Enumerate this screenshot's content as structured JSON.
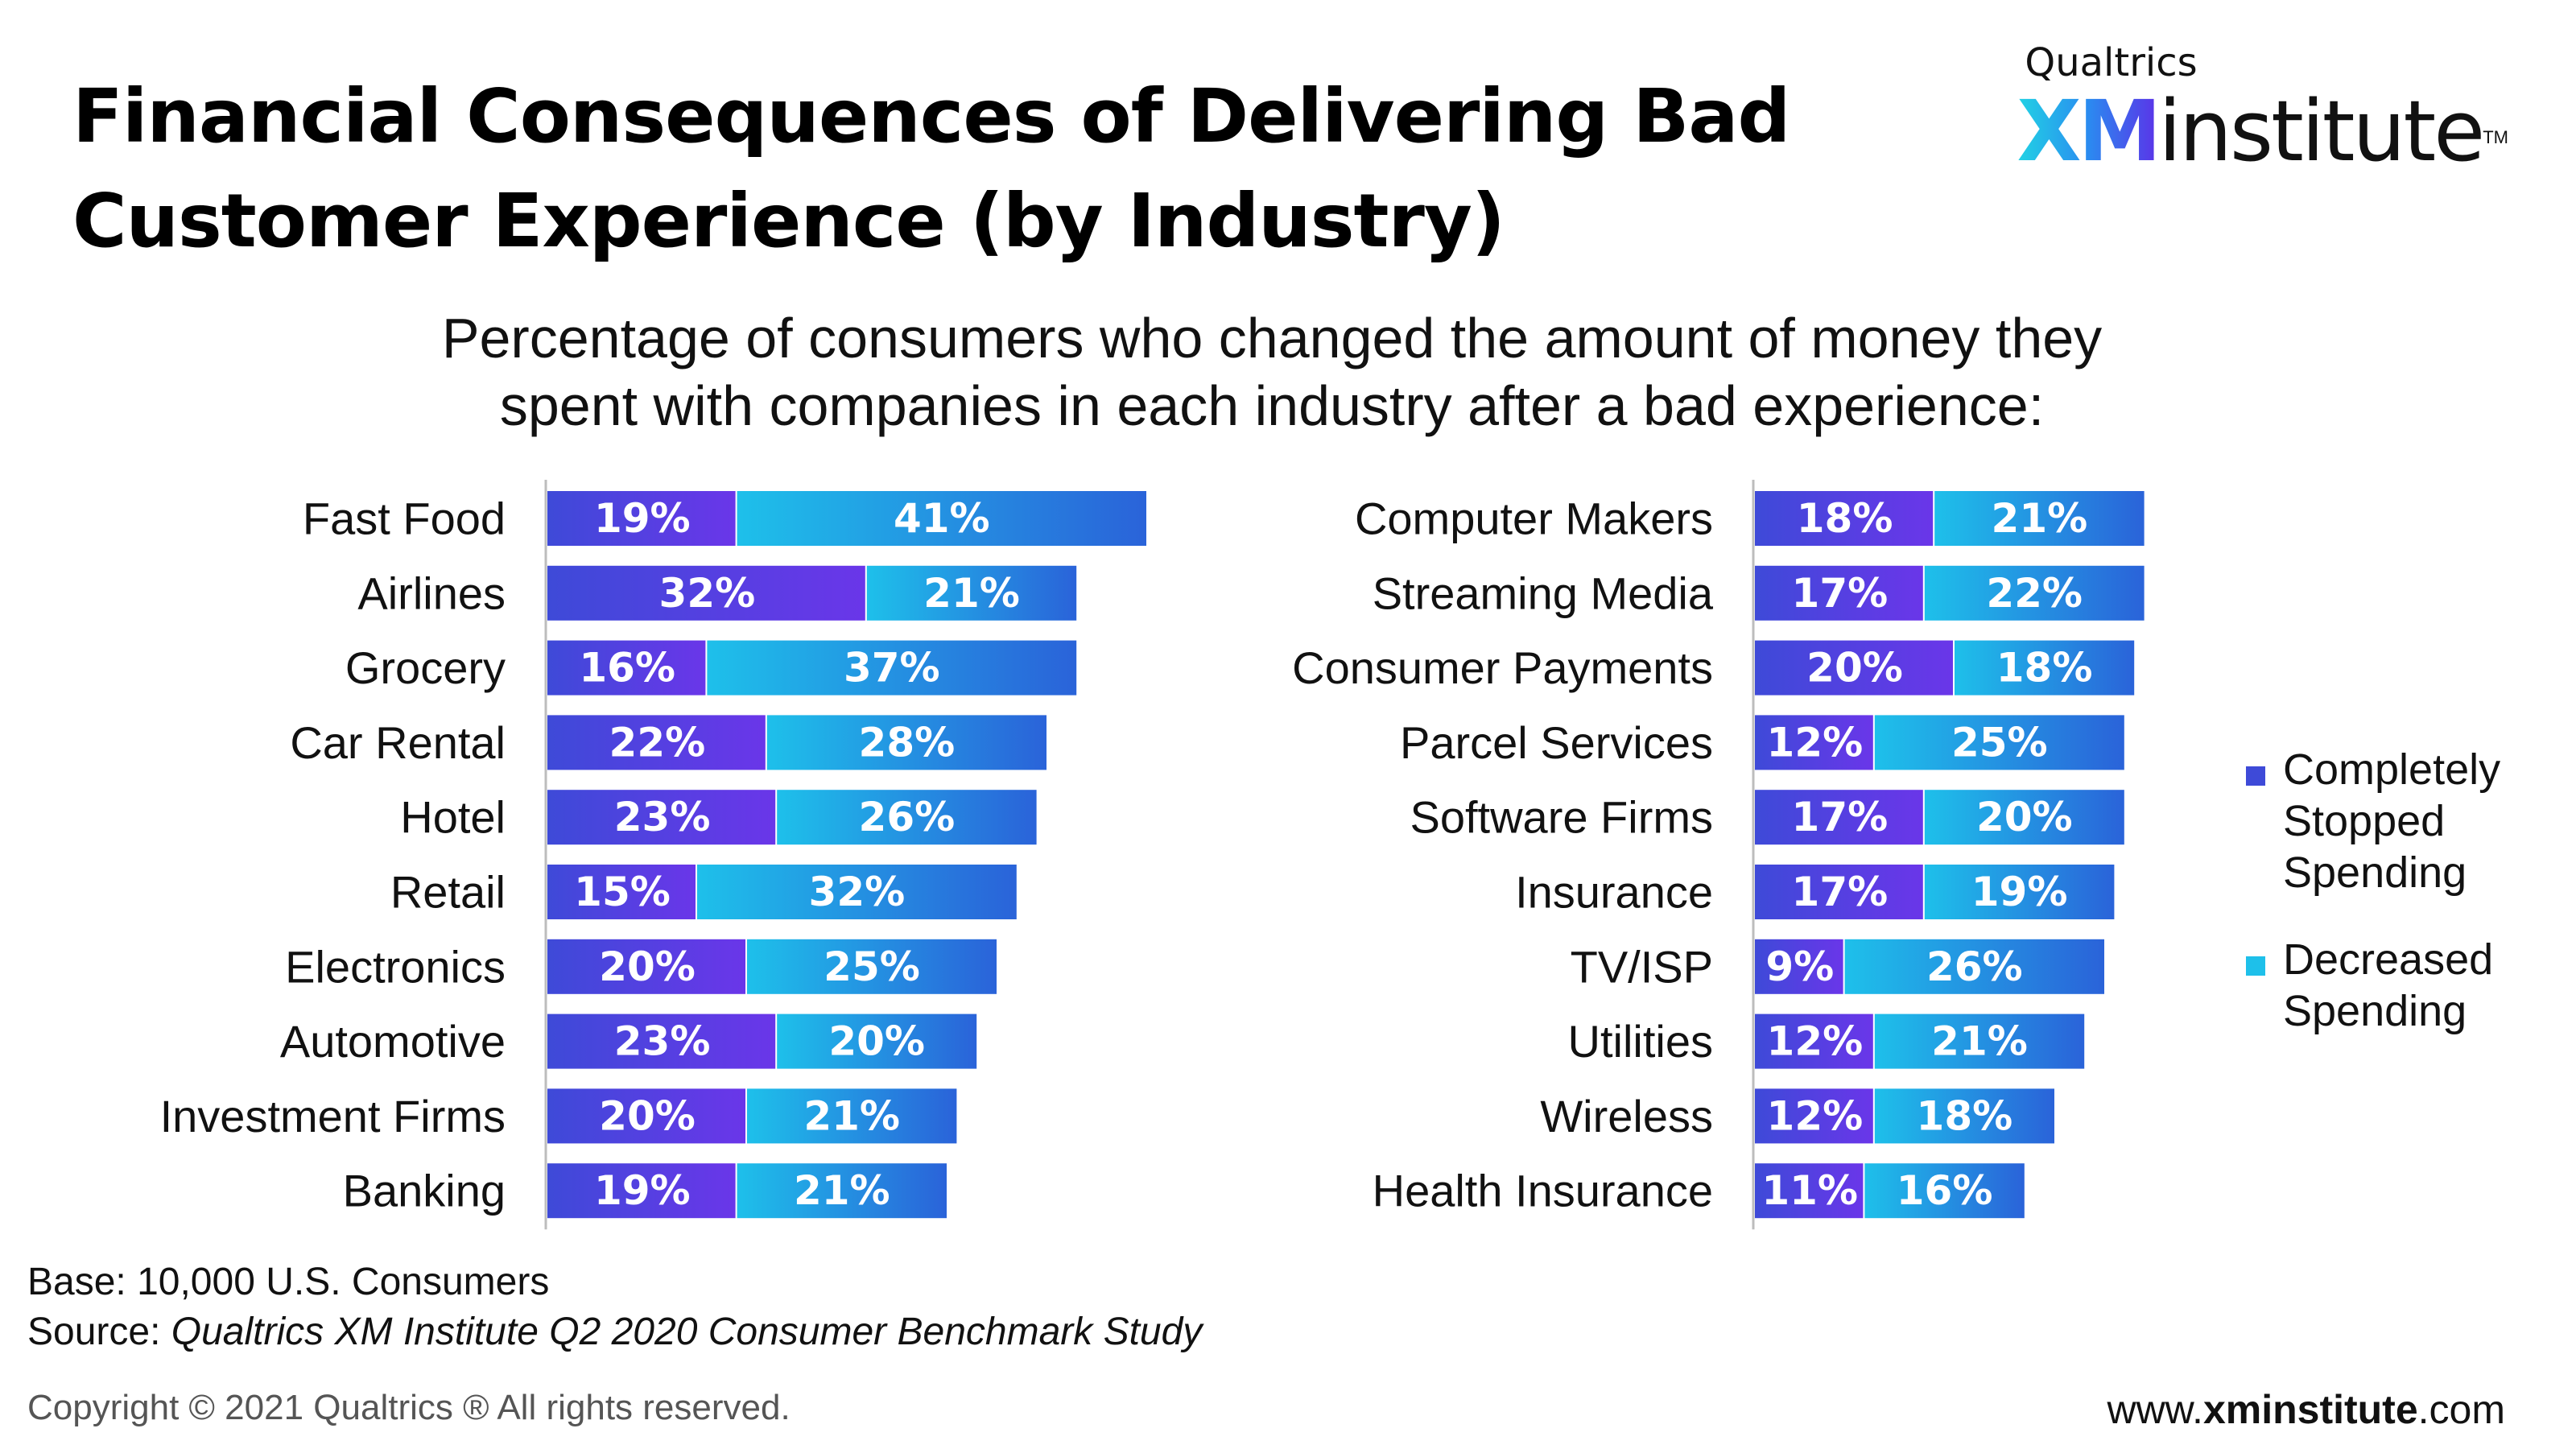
{
  "title": "Financial Consequences of Delivering Bad Customer Experience (by Industry)",
  "logo": {
    "brand": "Qualtrics",
    "xm": "XM",
    "institute": "institute",
    "tm": "TM"
  },
  "subtitle": {
    "line1": "Percentage of consumers who changed the amount of money they",
    "line2": "spent with companies in each industry after a bad experience:"
  },
  "colors": {
    "stopped": "#6a36e9",
    "stopped_dark": "#3e4ad8",
    "decreased": "#1ec0ea",
    "decreased_dark": "#2a63d9",
    "axis": "#bdbdbd"
  },
  "chart_data": [
    {
      "type": "bar",
      "orientation": "horizontal",
      "stacked": true,
      "categories": [
        "Fast Food",
        "Airlines",
        "Grocery",
        "Car Rental",
        "Hotel",
        "Retail",
        "Electronics",
        "Automotive",
        "Investment Firms",
        "Banking"
      ],
      "series": [
        {
          "name": "Completely Stopped Spending",
          "values": [
            19,
            32,
            16,
            22,
            23,
            15,
            20,
            23,
            20,
            19
          ],
          "labels": [
            "19%",
            "32%",
            "16%",
            "22%",
            "23%",
            "15%",
            "20%",
            "23%",
            "20%",
            "19%"
          ]
        },
        {
          "name": "Decreased Spending",
          "values": [
            41,
            21,
            37,
            28,
            26,
            32,
            25,
            20,
            21,
            21
          ],
          "labels": [
            "41%",
            "21%",
            "37%",
            "28%",
            "26%",
            "32%",
            "25%",
            "20%",
            "21%",
            "21%"
          ]
        }
      ]
    },
    {
      "type": "bar",
      "orientation": "horizontal",
      "stacked": true,
      "categories": [
        "Computer Makers",
        "Streaming Media",
        "Consumer Payments",
        "Parcel Services",
        "Software Firms",
        "Insurance",
        "TV/ISP",
        "Utilities",
        "Wireless",
        "Health Insurance"
      ],
      "series": [
        {
          "name": "Completely Stopped Spending",
          "values": [
            18,
            17,
            20,
            12,
            17,
            17,
            9,
            12,
            12,
            11
          ],
          "labels": [
            "18%",
            "17%",
            "20%",
            "12%",
            "17%",
            "17%",
            "9%",
            "12%",
            "12%",
            "11%"
          ]
        },
        {
          "name": "Decreased Spending",
          "values": [
            21,
            22,
            18,
            25,
            20,
            19,
            26,
            21,
            18,
            16
          ],
          "labels": [
            "21%",
            "22%",
            "18%",
            "25%",
            "20%",
            "19%",
            "26%",
            "21%",
            "18%",
            "16%"
          ]
        }
      ]
    }
  ],
  "legend": {
    "placement": "right",
    "items": [
      {
        "label": "Completely Stopped Spending"
      },
      {
        "label": "Decreased Spending"
      }
    ]
  },
  "notes": {
    "base": "Base: 10,000 U.S. Consumers",
    "source_prefix": "Source: ",
    "source": "Qualtrics XM Institute Q2 2020 Consumer Benchmark Study"
  },
  "footer": {
    "copyright": "Copyright © 2021 Qualtrics ® All rights reserved.",
    "website_prefix": "www.",
    "website_bold": "xminstitute",
    "website_suffix": ".com"
  }
}
